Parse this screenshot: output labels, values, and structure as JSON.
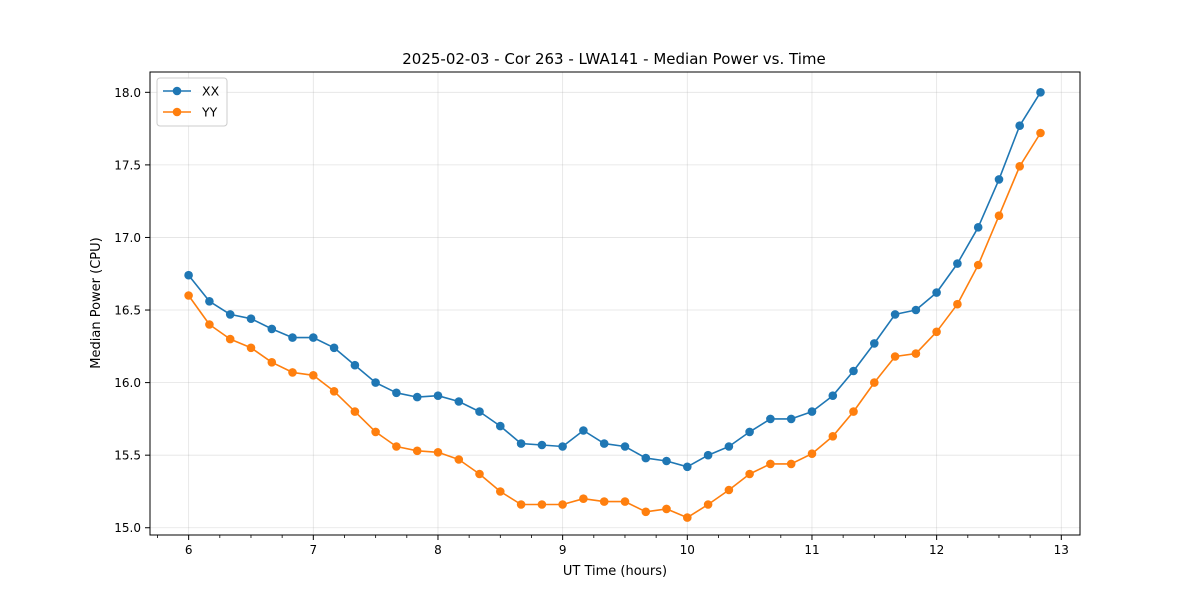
{
  "chart_data": {
    "type": "line",
    "title": "2025-02-03 - Cor 263 - LWA141 - Median Power vs. Time",
    "xlabel": "UT Time (hours)",
    "ylabel": "Median Power (CPU)",
    "xlim": [
      5.69,
      13.15
    ],
    "ylim": [
      14.95,
      18.14
    ],
    "xticks": [
      6,
      7,
      8,
      9,
      10,
      11,
      12,
      13
    ],
    "xtick_labels": [
      "6",
      "7",
      "8",
      "9",
      "10",
      "11",
      "12",
      "13"
    ],
    "yticks": [
      15.0,
      15.5,
      16.0,
      16.5,
      17.0,
      17.5,
      18.0
    ],
    "ytick_labels": [
      "15.0",
      "15.5",
      "16.0",
      "16.5",
      "17.0",
      "17.5",
      "18.0"
    ],
    "minor_xtick_step": 0.25,
    "grid": true,
    "legend_position": "upper-left",
    "x": [
      6.0,
      6.1667,
      6.3333,
      6.5,
      6.6667,
      6.8333,
      7.0,
      7.1667,
      7.3333,
      7.5,
      7.6667,
      7.8333,
      8.0,
      8.1667,
      8.3333,
      8.5,
      8.6667,
      8.8333,
      9.0,
      9.1667,
      9.3333,
      9.5,
      9.6667,
      9.8333,
      10.0,
      10.1667,
      10.3333,
      10.5,
      10.6667,
      10.8333,
      11.0,
      11.1667,
      11.3333,
      11.5,
      11.6667,
      11.8333,
      12.0,
      12.1667,
      12.3333,
      12.5,
      12.6667,
      12.8333
    ],
    "series": [
      {
        "name": "XX",
        "color": "#1f77b4",
        "values": [
          16.74,
          16.56,
          16.47,
          16.44,
          16.37,
          16.31,
          16.31,
          16.24,
          16.12,
          16.0,
          15.93,
          15.9,
          15.91,
          15.87,
          15.8,
          15.7,
          15.58,
          15.57,
          15.56,
          15.67,
          15.58,
          15.56,
          15.48,
          15.46,
          15.42,
          15.5,
          15.56,
          15.66,
          15.75,
          15.75,
          15.8,
          15.91,
          16.08,
          16.27,
          16.47,
          16.5,
          16.62,
          16.82,
          17.07,
          17.4,
          17.77,
          18.0
        ]
      },
      {
        "name": "YY",
        "color": "#ff7f0e",
        "values": [
          16.6,
          16.4,
          16.3,
          16.24,
          16.14,
          16.07,
          16.05,
          15.94,
          15.8,
          15.66,
          15.56,
          15.53,
          15.52,
          15.47,
          15.37,
          15.25,
          15.16,
          15.16,
          15.16,
          15.2,
          15.18,
          15.18,
          15.11,
          15.13,
          15.07,
          15.16,
          15.26,
          15.37,
          15.44,
          15.44,
          15.51,
          15.63,
          15.8,
          16.0,
          16.18,
          16.2,
          16.35,
          16.54,
          16.81,
          17.15,
          17.49,
          17.72
        ]
      }
    ]
  }
}
